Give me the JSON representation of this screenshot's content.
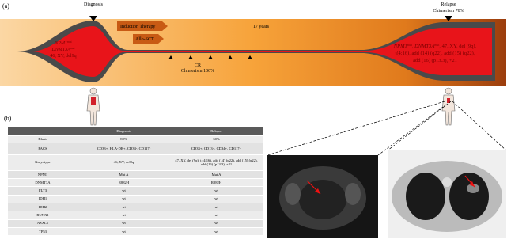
{
  "panel_a": {
    "label": "(a)",
    "diagnosis": "Diagnosis",
    "relapse": "Relapse",
    "relapse_chimerism": "Chimerism 78%",
    "induction": "Induction Therapy",
    "allo": "Allo-SCT",
    "duration": "17 years",
    "cr": "CR",
    "cr_chimerism": "Chimerism 100%",
    "left_annotation": [
      [
        {
          "text": "NPM1",
          "style": "italic"
        },
        {
          "text": "mut",
          "style": "sup"
        }
      ],
      [
        {
          "text": "DNMT3A",
          "style": "italic"
        },
        {
          "text": "mut",
          "style": "sup"
        }
      ],
      [
        {
          "text": "46, XY, del9q"
        }
      ]
    ],
    "right_annotation": [
      [
        {
          "text": "NPM1",
          "style": "italic"
        },
        {
          "text": "mut",
          "style": "sup"
        },
        {
          "text": ", "
        },
        {
          "text": "DNMT3A",
          "style": "italic"
        },
        {
          "text": "mut",
          "style": "sup"
        },
        {
          "text": ", 47, XY, del (9q),"
        }
      ],
      [
        {
          "text": "t(4;16), add (14) (q22), add (15) (q22),"
        }
      ],
      [
        {
          "text": "add (16) (p13.3), +21"
        }
      ]
    ]
  },
  "panel_b": {
    "label": "(b)",
    "table": {
      "header": [
        "",
        "Diagnosis",
        "Relapse"
      ],
      "rows": [
        [
          "Blasts",
          "80%",
          "30%"
        ],
        [
          "FACS",
          "CD33+, HLA-DR+, CD34-, CD117-",
          "CD33+, CD13+, CD34+, CD117+"
        ],
        [
          "Karyotype",
          "46, XY, del9q",
          "47, XY, del (9q), t (4;16), add (14) (q22), add (15) (q22), add (16) (p13.3), +21"
        ],
        [
          "NPM1",
          "Mut A",
          "Mut A"
        ],
        [
          "DNMT3A",
          "R882H",
          "R882H"
        ],
        [
          "FLT3",
          "wt",
          "wt"
        ],
        [
          "IDH1",
          "wt",
          "wt"
        ],
        [
          "IDH2",
          "wt",
          "wt"
        ],
        [
          "RUNX1",
          "wt",
          "wt"
        ],
        [
          "ASXL1",
          "wt",
          "wt"
        ],
        [
          "TP53",
          "wt",
          "wt"
        ]
      ]
    }
  }
}
